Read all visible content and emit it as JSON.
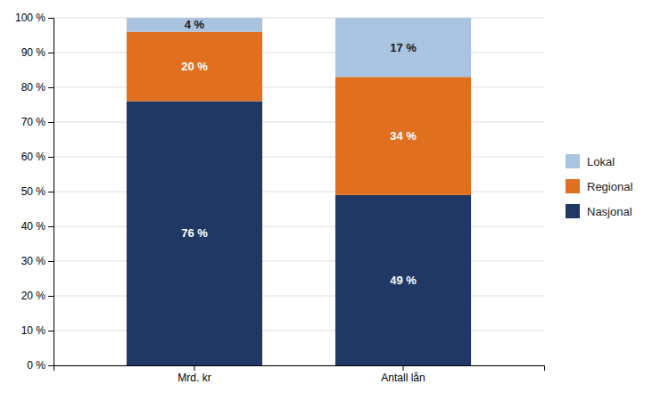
{
  "chart_data": {
    "type": "bar",
    "stacked": true,
    "data_labels": true,
    "categories": [
      "Mrd. kr",
      "Antall lån"
    ],
    "series": [
      {
        "name": "Nasjonal",
        "color": "#1F3864",
        "values": [
          76,
          49
        ],
        "value_labels": [
          "76 %",
          "49 %"
        ]
      },
      {
        "name": "Regional",
        "color": "#E07020",
        "values": [
          20,
          34
        ],
        "value_labels": [
          "20 %",
          "34 %"
        ]
      },
      {
        "name": "Lokal",
        "color": "#A9C4E0",
        "values": [
          4,
          17
        ],
        "value_labels": [
          "4 %",
          "17 %"
        ]
      }
    ],
    "ylim": [
      0,
      100
    ],
    "yticks": [
      {
        "value": 0,
        "label": "0 %"
      },
      {
        "value": 10,
        "label": "10 %"
      },
      {
        "value": 20,
        "label": "20 %"
      },
      {
        "value": 30,
        "label": "30 %"
      },
      {
        "value": 40,
        "label": "40 %"
      },
      {
        "value": 50,
        "label": "50 %"
      },
      {
        "value": 60,
        "label": "60 %"
      },
      {
        "value": 70,
        "label": "70 %"
      },
      {
        "value": 80,
        "label": "80 %"
      },
      {
        "value": 90,
        "label": "90 %"
      },
      {
        "value": 100,
        "label": "100 %"
      }
    ],
    "grid": true,
    "legend": "right"
  }
}
